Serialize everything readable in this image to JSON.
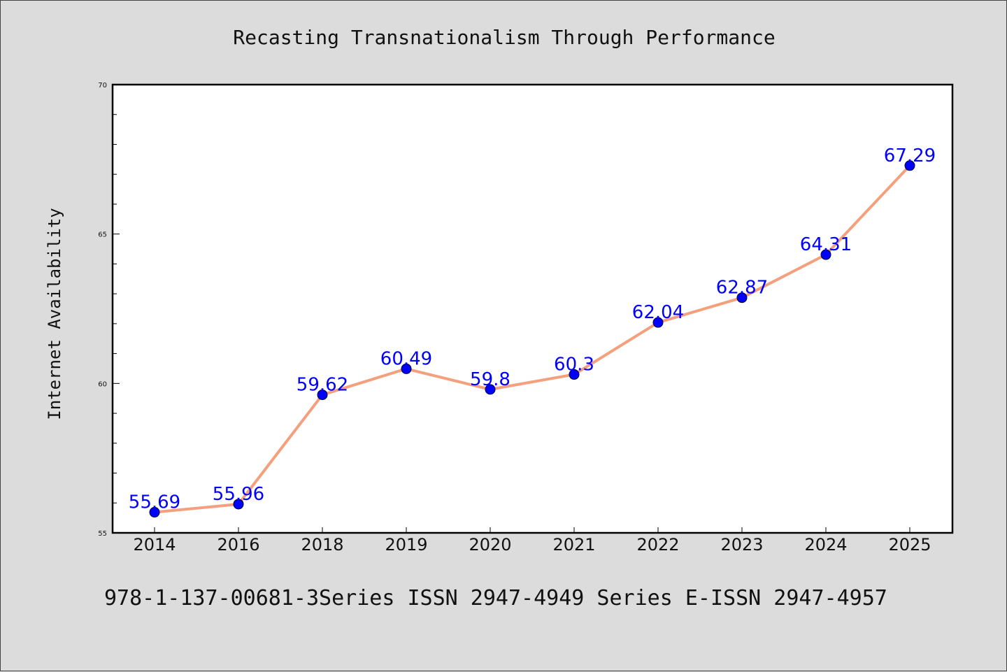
{
  "footer": "978-1-137-00681-3Series ISSN 2947-4949 Series E-ISSN 2947-4957",
  "chart_data": {
    "type": "line",
    "title": "Recasting Transnationalism Through Performance",
    "xlabel": "",
    "ylabel": "Internet Availability",
    "categories": [
      "2014",
      "2016",
      "2018",
      "2019",
      "2020",
      "2021",
      "2022",
      "2023",
      "2024",
      "2025"
    ],
    "series": [
      {
        "values": [
          55.69,
          55.96,
          59.62,
          60.49,
          59.8,
          60.3,
          62.04,
          62.87,
          64.31,
          67.29
        ],
        "data_labels": [
          "55.69",
          "55.96",
          "59.62",
          "60.49",
          "59.8",
          "60.3",
          "62.04",
          "62.87",
          "64.31",
          "67.29"
        ],
        "line_color": "#f4a07c",
        "marker_color": "#0000ff"
      }
    ],
    "ylim": [
      55,
      70
    ],
    "y_major_ticks": [
      "55",
      "60",
      "65",
      "70"
    ],
    "y_minor_step": 1,
    "grid": false,
    "label_color": "#0000ff",
    "plot_background": "#ffffff",
    "page_background": "#dcdcdc"
  }
}
